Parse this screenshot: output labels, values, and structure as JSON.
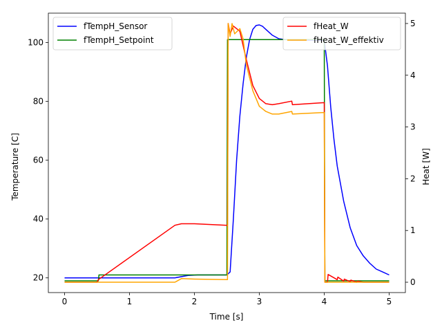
{
  "chart_data": {
    "type": "line",
    "xlabel": "Time [s]",
    "ylabel_left": "Temperature [C]",
    "ylabel_right": "Heat [W]",
    "xlim": [
      -0.25,
      5.25
    ],
    "ylim_left": [
      15,
      110
    ],
    "ylim_right": [
      -0.2,
      5.2
    ],
    "xticks": [
      0,
      1,
      2,
      3,
      4,
      5
    ],
    "yticks_left": [
      20,
      40,
      60,
      80,
      100
    ],
    "yticks_right": [
      0,
      1,
      2,
      3,
      4,
      5
    ],
    "grid": false,
    "legend_left": {
      "placement": "top-left",
      "entries": [
        "fTempH_Sensor",
        "fTempH_Setpoint"
      ]
    },
    "legend_right": {
      "placement": "top-right",
      "entries": [
        "fHeat_W",
        "fHeat_W_effektiv"
      ]
    },
    "series": [
      {
        "name": "fTempH_Sensor",
        "axis": "left",
        "color": "#0000ff",
        "points": [
          [
            0,
            20
          ],
          [
            1.0,
            20
          ],
          [
            1.7,
            20
          ],
          [
            1.9,
            20.8
          ],
          [
            2.05,
            21
          ],
          [
            2.5,
            21
          ],
          [
            2.55,
            22
          ],
          [
            2.6,
            40
          ],
          [
            2.65,
            60
          ],
          [
            2.7,
            75
          ],
          [
            2.75,
            86
          ],
          [
            2.8,
            95
          ],
          [
            2.85,
            101
          ],
          [
            2.9,
            104.5
          ],
          [
            2.95,
            105.8
          ],
          [
            3.0,
            106
          ],
          [
            3.05,
            105.5
          ],
          [
            3.1,
            104.5
          ],
          [
            3.2,
            102.5
          ],
          [
            3.3,
            101.3
          ],
          [
            3.4,
            101
          ],
          [
            3.5,
            100.8
          ],
          [
            3.8,
            100.8
          ],
          [
            4.0,
            100.8
          ],
          [
            4.05,
            92
          ],
          [
            4.1,
            78
          ],
          [
            4.15,
            67
          ],
          [
            4.2,
            58
          ],
          [
            4.3,
            46
          ],
          [
            4.4,
            37
          ],
          [
            4.5,
            31
          ],
          [
            4.6,
            27.5
          ],
          [
            4.7,
            25
          ],
          [
            4.8,
            23
          ],
          [
            4.9,
            22
          ],
          [
            5.0,
            21
          ]
        ]
      },
      {
        "name": "fTempH_Setpoint",
        "axis": "left",
        "color": "#008000",
        "points": [
          [
            0,
            19
          ],
          [
            0.52,
            19
          ],
          [
            0.53,
            21
          ],
          [
            2.5,
            21
          ],
          [
            2.51,
            101
          ],
          [
            4.0,
            101
          ],
          [
            4.01,
            19
          ],
          [
            5.0,
            19
          ]
        ]
      },
      {
        "name": "fHeat_W",
        "axis": "right",
        "color": "#ff0000",
        "points": [
          [
            0,
            0
          ],
          [
            0.5,
            0
          ],
          [
            0.52,
            0.05
          ],
          [
            1.7,
            1.1
          ],
          [
            1.8,
            1.13
          ],
          [
            2.0,
            1.13
          ],
          [
            2.5,
            1.1
          ],
          [
            2.51,
            1.1
          ],
          [
            2.52,
            5.0
          ],
          [
            2.55,
            4.8
          ],
          [
            2.6,
            4.95
          ],
          [
            2.7,
            4.85
          ],
          [
            2.8,
            4.3
          ],
          [
            2.9,
            3.8
          ],
          [
            3.0,
            3.55
          ],
          [
            3.1,
            3.45
          ],
          [
            3.2,
            3.43
          ],
          [
            3.3,
            3.45
          ],
          [
            3.5,
            3.5
          ],
          [
            3.51,
            3.43
          ],
          [
            4.0,
            3.47
          ],
          [
            4.01,
            0
          ],
          [
            4.05,
            0
          ],
          [
            4.06,
            0.15
          ],
          [
            4.2,
            0.05
          ],
          [
            4.21,
            0.1
          ],
          [
            4.3,
            0.02
          ],
          [
            4.31,
            0.06
          ],
          [
            4.4,
            0.01
          ],
          [
            4.41,
            0.04
          ],
          [
            4.5,
            0.0
          ],
          [
            4.51,
            0.02
          ],
          [
            4.6,
            0
          ],
          [
            5.0,
            0
          ]
        ]
      },
      {
        "name": "fHeat_W_effektiv",
        "axis": "right",
        "color": "#ffa500",
        "points": [
          [
            0,
            0
          ],
          [
            0.5,
            0
          ],
          [
            1.7,
            0.0
          ],
          [
            1.8,
            0.07
          ],
          [
            2.0,
            0.06
          ],
          [
            2.5,
            0.05
          ],
          [
            2.51,
            0.05
          ],
          [
            2.52,
            5.0
          ],
          [
            2.55,
            4.75
          ],
          [
            2.58,
            5.0
          ],
          [
            2.62,
            4.8
          ],
          [
            2.7,
            4.9
          ],
          [
            2.75,
            4.7
          ],
          [
            2.8,
            4.2
          ],
          [
            2.9,
            3.7
          ],
          [
            3.0,
            3.4
          ],
          [
            3.1,
            3.3
          ],
          [
            3.2,
            3.25
          ],
          [
            3.3,
            3.25
          ],
          [
            3.5,
            3.3
          ],
          [
            3.51,
            3.25
          ],
          [
            4.0,
            3.28
          ],
          [
            4.01,
            0
          ],
          [
            5.0,
            0
          ]
        ]
      }
    ]
  }
}
